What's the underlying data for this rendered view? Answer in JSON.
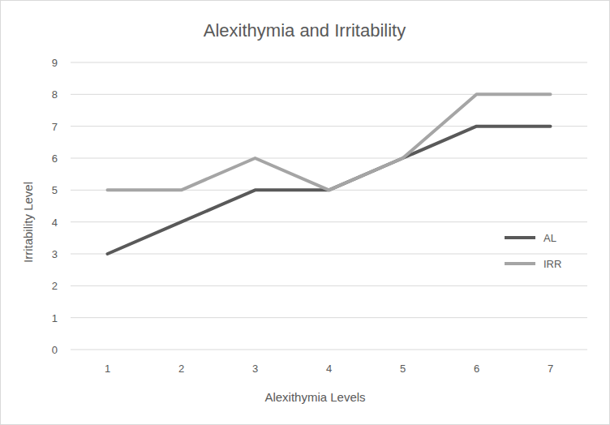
{
  "chart_data": {
    "type": "line",
    "title": "Alexithymia and Irritability",
    "x_label": "Alexithymia Levels",
    "y_label": "Irritability Level",
    "categories": [
      "1",
      "2",
      "3",
      "4",
      "5",
      "6",
      "7"
    ],
    "series": [
      {
        "name": "AL",
        "color": "#595959",
        "values": [
          3,
          4,
          5,
          5,
          6,
          7,
          7
        ]
      },
      {
        "name": "IRR",
        "color": "#a5a5a5",
        "values": [
          5,
          5,
          6,
          5,
          6,
          8,
          8
        ]
      }
    ],
    "ylim": [
      0,
      9
    ],
    "yticks": [
      0,
      1,
      2,
      3,
      4,
      5,
      6,
      7,
      8,
      9
    ],
    "grid": true,
    "legend": "right"
  }
}
